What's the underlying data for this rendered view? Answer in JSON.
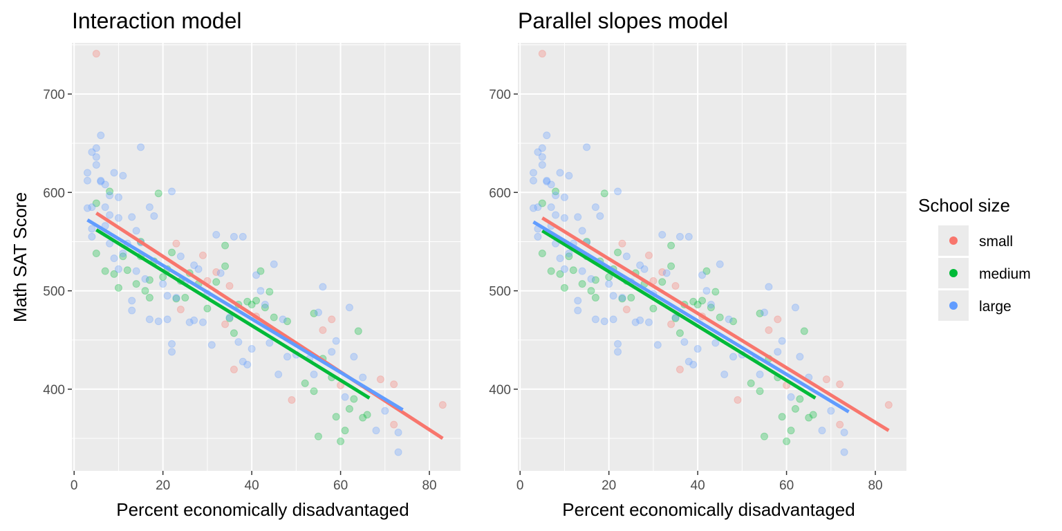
{
  "figure": {
    "ylabel": "Math SAT Score",
    "legend": {
      "title": "School size",
      "placement": "right",
      "entries": [
        {
          "label": "small",
          "color": "#F8766D"
        },
        {
          "label": "medium",
          "color": "#00BA38"
        },
        {
          "label": "large",
          "color": "#619CFF"
        }
      ]
    }
  },
  "chart_data": [
    {
      "type": "scatter",
      "title": "Interaction model",
      "xlabel": "Percent economically disadvantaged",
      "ylabel": "Math SAT Score",
      "xlim": [
        -0.5,
        87
      ],
      "ylim": [
        317,
        752
      ],
      "xticks": [
        0,
        20,
        40,
        60,
        80
      ],
      "yticks": [
        400,
        500,
        600,
        700
      ],
      "grid": true,
      "series": [
        {
          "name": "small",
          "color": "#F8766D",
          "points": [
            [
              5,
              741
            ],
            [
              23,
              548
            ],
            [
              29,
              536
            ],
            [
              32,
              519
            ],
            [
              34,
              466
            ],
            [
              35,
              505
            ],
            [
              36,
              420
            ],
            [
              41,
              474
            ],
            [
              49,
              389
            ],
            [
              56,
              460
            ],
            [
              58,
              471
            ],
            [
              60,
              404
            ],
            [
              69,
              410
            ],
            [
              72,
              364
            ],
            [
              72,
              405
            ],
            [
              83,
              384
            ],
            [
              24,
              481
            ],
            [
              30,
              510
            ]
          ],
          "fit": {
            "x": [
              5,
              83
            ],
            "y": [
              579,
              350
            ]
          }
        },
        {
          "name": "medium",
          "color": "#00BA38",
          "points": [
            [
              5,
              589
            ],
            [
              5,
              538
            ],
            [
              7,
              520
            ],
            [
              8,
              601
            ],
            [
              9,
              517
            ],
            [
              10,
              503
            ],
            [
              11,
              535
            ],
            [
              12,
              521
            ],
            [
              14,
              507
            ],
            [
              15,
              535
            ],
            [
              16,
              500
            ],
            [
              17,
              511
            ],
            [
              18,
              530
            ],
            [
              19,
              599
            ],
            [
              20,
              514
            ],
            [
              21,
              522
            ],
            [
              22,
              539
            ],
            [
              23,
              492
            ],
            [
              24,
              510
            ],
            [
              26,
              518
            ],
            [
              28,
              507
            ],
            [
              30,
              482
            ],
            [
              32,
              509
            ],
            [
              34,
              546
            ],
            [
              34,
              525
            ],
            [
              35,
              472
            ],
            [
              36,
              457
            ],
            [
              37,
              486
            ],
            [
              39,
              489
            ],
            [
              40,
              486
            ],
            [
              41,
              490
            ],
            [
              42,
              520
            ],
            [
              43,
              483
            ],
            [
              44,
              499
            ],
            [
              45,
              473
            ],
            [
              48,
              469
            ],
            [
              52,
              406
            ],
            [
              54,
              477
            ],
            [
              54,
              398
            ],
            [
              55,
              352
            ],
            [
              56,
              431
            ],
            [
              58,
              412
            ],
            [
              59,
              372
            ],
            [
              60,
              347
            ],
            [
              61,
              358
            ],
            [
              62,
              380
            ],
            [
              63,
              390
            ],
            [
              64,
              459
            ],
            [
              65,
              371
            ],
            [
              66,
              374
            ],
            [
              15,
              550
            ],
            [
              17,
              493
            ],
            [
              25,
              493
            ]
          ],
          "fit": {
            "x": [
              5,
              66.5
            ],
            "y": [
              562,
              391
            ]
          }
        },
        {
          "name": "large",
          "color": "#619CFF",
          "points": [
            [
              3,
              584
            ],
            [
              3,
              620
            ],
            [
              3,
              612
            ],
            [
              4,
              563
            ],
            [
              4,
              641
            ],
            [
              4,
              555
            ],
            [
              4,
              585
            ],
            [
              5,
              636
            ],
            [
              5,
              645
            ],
            [
              5,
              628
            ],
            [
              6,
              658
            ],
            [
              6,
              611
            ],
            [
              6,
              612
            ],
            [
              7,
              585
            ],
            [
              7,
              608
            ],
            [
              7,
              566
            ],
            [
              8,
              597
            ],
            [
              8,
              577
            ],
            [
              8,
              548
            ],
            [
              9,
              620
            ],
            [
              9,
              533
            ],
            [
              10,
              595
            ],
            [
              10,
              574
            ],
            [
              10,
              522
            ],
            [
              11,
              617
            ],
            [
              11,
              538
            ],
            [
              12,
              548
            ],
            [
              13,
              575
            ],
            [
              13,
              490
            ],
            [
              13,
              480
            ],
            [
              14,
              561
            ],
            [
              14,
              520
            ],
            [
              15,
              646
            ],
            [
              15,
              549
            ],
            [
              16,
              512
            ],
            [
              17,
              585
            ],
            [
              17,
              471
            ],
            [
              18,
              576
            ],
            [
              19,
              469
            ],
            [
              20,
              507
            ],
            [
              21,
              471
            ],
            [
              21,
              495
            ],
            [
              22,
              601
            ],
            [
              22,
              446
            ],
            [
              22,
              438
            ],
            [
              23,
              493
            ],
            [
              24,
              535
            ],
            [
              25,
              509
            ],
            [
              26,
              468
            ],
            [
              27,
              470
            ],
            [
              27,
              526
            ],
            [
              28,
              522
            ],
            [
              29,
              468
            ],
            [
              30,
              497
            ],
            [
              31,
              445
            ],
            [
              32,
              557
            ],
            [
              33,
              518
            ],
            [
              35,
              473
            ],
            [
              36,
              555
            ],
            [
              37,
              448
            ],
            [
              38,
              555
            ],
            [
              38,
              428
            ],
            [
              39,
              425
            ],
            [
              40,
              441
            ],
            [
              41,
              516
            ],
            [
              42,
              500
            ],
            [
              43,
              486
            ],
            [
              44,
              447
            ],
            [
              45,
              527
            ],
            [
              46,
              415
            ],
            [
              47,
              471
            ],
            [
              48,
              433
            ],
            [
              50,
              435
            ],
            [
              53,
              431
            ],
            [
              54,
              415
            ],
            [
              55,
              478
            ],
            [
              56,
              504
            ],
            [
              58,
              438
            ],
            [
              59,
              449
            ],
            [
              61,
              392
            ],
            [
              62,
              483
            ],
            [
              63,
              433
            ],
            [
              65,
              412
            ],
            [
              68,
              358
            ],
            [
              70,
              378
            ],
            [
              73,
              356
            ],
            [
              73,
              336
            ]
          ],
          "fit": {
            "x": [
              3,
              74
            ],
            "y": [
              572,
              379
            ]
          }
        }
      ]
    },
    {
      "type": "scatter",
      "title": "Parallel slopes model",
      "xlabel": "Percent economically disadvantaged",
      "ylabel": "Math SAT Score",
      "xlim": [
        -0.5,
        87
      ],
      "ylim": [
        317,
        752
      ],
      "xticks": [
        0,
        20,
        40,
        60,
        80
      ],
      "yticks": [
        400,
        500,
        600,
        700
      ],
      "grid": true,
      "series": [
        {
          "name": "small",
          "color": "#F8766D",
          "points_ref": 0,
          "fit": {
            "x": [
              5,
              83
            ],
            "y": [
              574,
              358
            ]
          }
        },
        {
          "name": "medium",
          "color": "#00BA38",
          "points_ref": 1,
          "fit": {
            "x": [
              5,
              66.5
            ],
            "y": [
              561,
              391
            ]
          }
        },
        {
          "name": "large",
          "color": "#619CFF",
          "points_ref": 2,
          "fit": {
            "x": [
              3,
              74
            ],
            "y": [
              570,
              377
            ]
          }
        }
      ]
    }
  ]
}
